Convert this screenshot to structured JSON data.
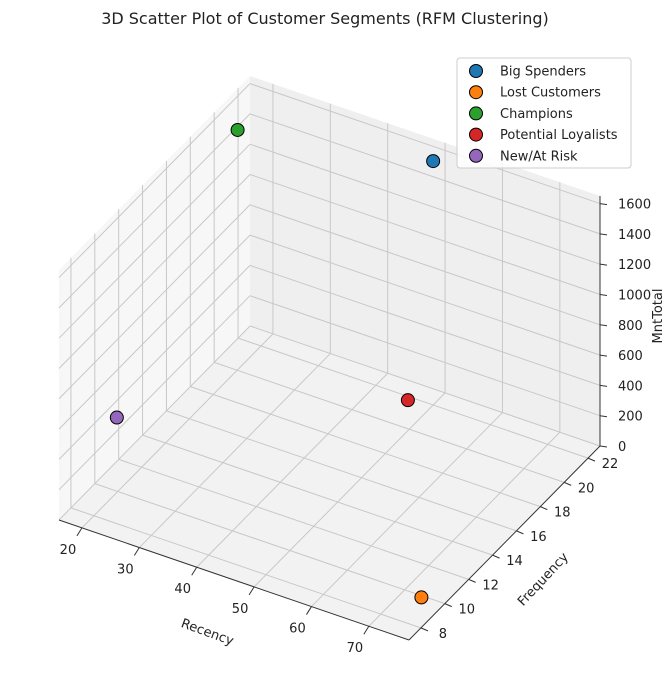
{
  "chart_data": {
    "type": "scatter",
    "title": "3D Scatter Plot of Customer Segments (RFM Clustering)",
    "xlabel": "Recency",
    "ylabel": "Frequency",
    "zlabel": "MntTotal",
    "xlim": [
      16,
      77
    ],
    "ylim": [
      7,
      23
    ],
    "zlim": [
      0,
      1650
    ],
    "x_ticks": [
      20,
      30,
      40,
      50,
      60,
      70
    ],
    "y_ticks": [
      8,
      10,
      12,
      14,
      16,
      18,
      20,
      22
    ],
    "z_ticks": [
      0,
      200,
      400,
      600,
      800,
      1000,
      1200,
      1400,
      1600
    ],
    "grid": true,
    "legend_position": "top-right",
    "series": [
      {
        "name": "Big Spenders",
        "color": "#1f77b4",
        "x": 50,
        "y": 22,
        "z": 1610
      },
      {
        "name": "Lost Customers",
        "color": "#ff7f0e",
        "x": 75,
        "y": 9,
        "z": 95
      },
      {
        "name": "Champions",
        "color": "#2ca02c",
        "x": 18,
        "y": 21,
        "z": 1480
      },
      {
        "name": "Potential Loyalists",
        "color": "#d62728",
        "x": 56,
        "y": 17,
        "z": 510
      },
      {
        "name": "New/At Risk",
        "color": "#9467bd",
        "x": 24,
        "y": 8,
        "z": 700
      }
    ]
  }
}
